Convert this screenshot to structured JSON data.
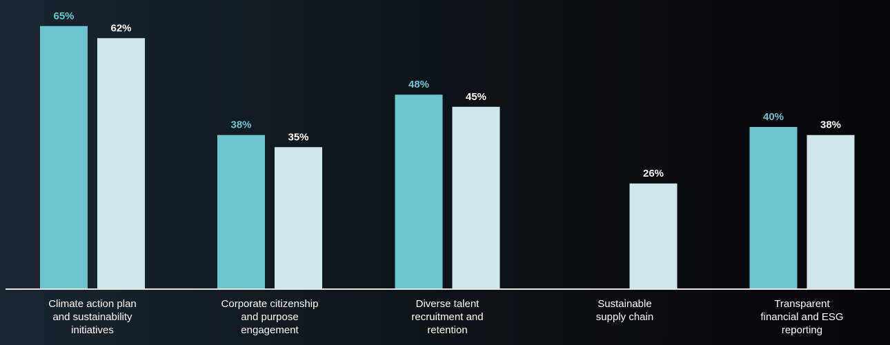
{
  "chart_data": {
    "type": "bar",
    "categories": [
      [
        "Climate action plan",
        "and sustainability",
        "initiatives"
      ],
      [
        "Corporate citizenship",
        "and purpose",
        "engagement"
      ],
      [
        "Diverse talent",
        "recruitment and",
        "retention"
      ],
      [
        "Sustainable",
        "supply chain"
      ],
      [
        "Transparent",
        "financial and ESG",
        "reporting"
      ]
    ],
    "series": [
      {
        "color": "#6cc5cf",
        "label_color": "#6cc5cf",
        "values": [
          65,
          38,
          48,
          null,
          40
        ],
        "labels": [
          "65%",
          "38%",
          "48%",
          "",
          "40%"
        ]
      },
      {
        "color": "#cfe6ea",
        "label_color": "#ffffff",
        "values": [
          62,
          35,
          45,
          26,
          38
        ],
        "labels": [
          "62%",
          "35%",
          "45%",
          "26%",
          "38%"
        ]
      }
    ],
    "ylim": [
      0,
      70
    ],
    "grid": false,
    "legend": "none",
    "baseline_color": "#e6e6e6",
    "category_label_color": "#ffffff"
  }
}
